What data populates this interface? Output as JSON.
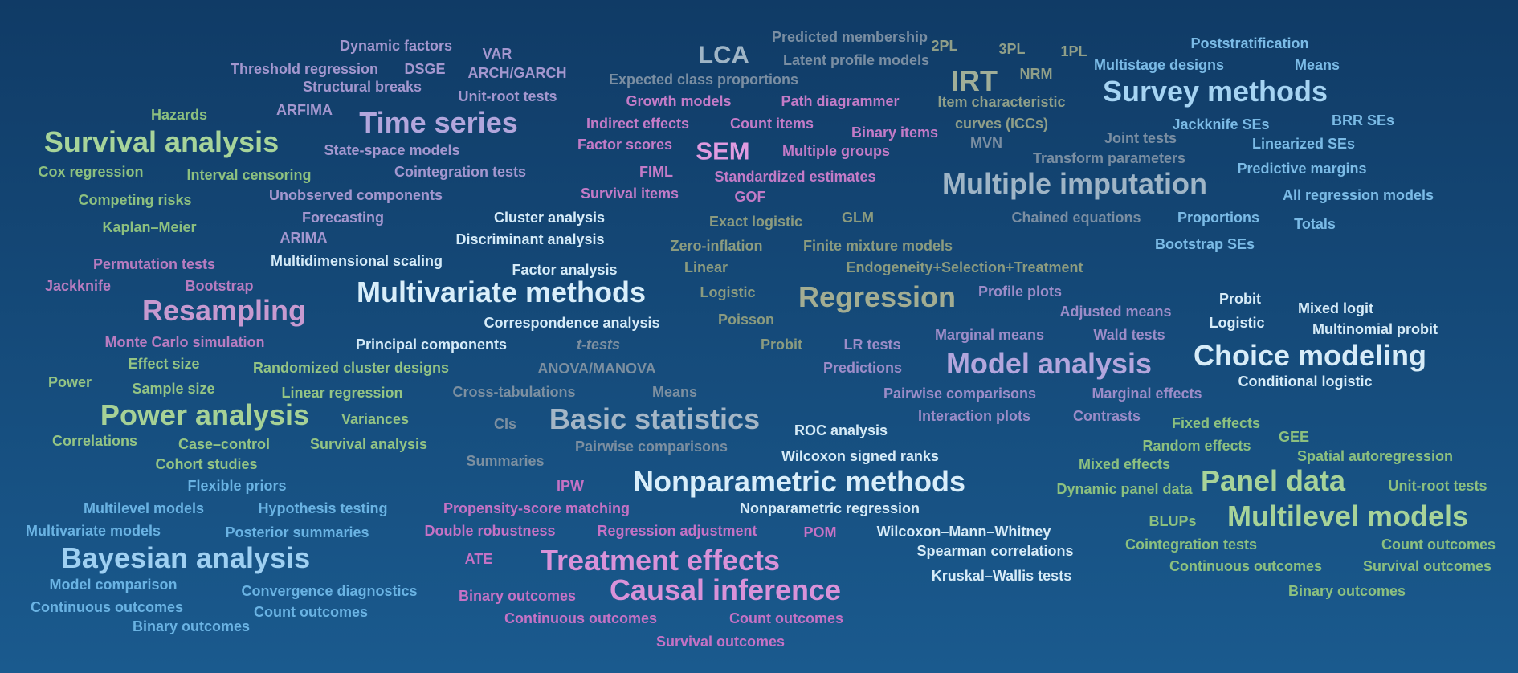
{
  "words": {
    "dynamic_factors": "Dynamic factors",
    "var": "VAR",
    "threshold_regression": "Threshold regression",
    "dsge": "DSGE",
    "arch_garch": "ARCH/GARCH",
    "structural_breaks": "Structural breaks",
    "unit_root_tests_ts": "Unit-root tests",
    "arfima": "ARFIMA",
    "time_series": "Time series",
    "state_space_models": "State-space models",
    "cointegration_tests_ts": "Cointegration tests",
    "unobserved_components": "Unobserved components",
    "forecasting": "Forecasting",
    "arima": "ARIMA",
    "lca": "LCA",
    "predicted_membership": "Predicted membership",
    "latent_profile_models": "Latent profile models",
    "expected_class_proportions": "Expected class proportions",
    "growth_models": "Growth models",
    "path_diagrammer": "Path diagrammer",
    "indirect_effects": "Indirect effects",
    "count_items": "Count items",
    "binary_items": "Binary items",
    "factor_scores": "Factor scores",
    "sem": "SEM",
    "multiple_groups": "Multiple groups",
    "fiml": "FIML",
    "standardized_estimates": "Standardized estimates",
    "survival_items": "Survival items",
    "gof": "GOF",
    "twopl": "2PL",
    "threepl": "3PL",
    "onepl": "1PL",
    "irt": "IRT",
    "nrm": "NRM",
    "item_characteristic": "Item characteristic",
    "curves_iccs": "curves (ICCs)",
    "poststratification": "Poststratification",
    "multistage_designs": "Multistage designs",
    "means_sv": "Means",
    "survey_methods": "Survey methods",
    "jackknife_ses": "Jackknife SEs",
    "brr_ses": "BRR SEs",
    "linearized_ses": "Linearized SEs",
    "predictive_margins": "Predictive margins",
    "all_regression_models": "All regression models",
    "proportions": "Proportions",
    "totals": "Totals",
    "bootstrap_ses": "Bootstrap SEs",
    "hazards": "Hazards",
    "survival_analysis": "Survival analysis",
    "cox_regression": "Cox regression",
    "interval_censoring": "Interval censoring",
    "competing_risks": "Competing risks",
    "kaplan_meier": "Kaplan–Meier",
    "joint_tests": "Joint tests",
    "mvn": "MVN",
    "transform_parameters": "Transform parameters",
    "multiple_imputation": "Multiple imputation",
    "chained_equations": "Chained equations",
    "cluster_analysis": "Cluster analysis",
    "discriminant_analysis": "Discriminant analysis",
    "multidimensional_scaling": "Multidimensional scaling",
    "factor_analysis": "Factor analysis",
    "multivariate_methods": "Multivariate methods",
    "correspondence_analysis": "Correspondence analysis",
    "principal_components": "Principal components",
    "permutation_tests": "Permutation tests",
    "jackknife": "Jackknife",
    "bootstrap": "Bootstrap",
    "resampling": "Resampling",
    "monte_carlo_simulation": "Monte Carlo simulation",
    "exact_logistic": "Exact logistic",
    "glm": "GLM",
    "zero_inflation": "Zero-inflation",
    "finite_mixture_models": "Finite mixture models",
    "linear": "Linear",
    "endogeneity": "Endogeneity+Selection+Treatment",
    "logistic_rg": "Logistic",
    "regression": "Regression",
    "poisson": "Poisson",
    "probit_rg": "Probit",
    "probit_cm": "Probit",
    "mixed_logit": "Mixed logit",
    "logistic_cm": "Logistic",
    "multinomial_probit": "Multinomial probit",
    "choice_modeling": "Choice modeling",
    "conditional_logistic": "Conditional logistic",
    "profile_plots": "Profile plots",
    "adjusted_means": "Adjusted means",
    "marginal_means": "Marginal means",
    "wald_tests": "Wald tests",
    "lr_tests": "LR tests",
    "predictions": "Predictions",
    "model_analysis": "Model analysis",
    "pairwise_comparisons_ma": "Pairwise comparisons",
    "marginal_effects": "Marginal effects",
    "interaction_plots": "Interaction plots",
    "contrasts": "Contrasts",
    "effect_size": "Effect size",
    "randomized_cluster_designs": "Randomized cluster designs",
    "power": "Power",
    "sample_size": "Sample size",
    "linear_regression": "Linear regression",
    "power_analysis": "Power analysis",
    "variances": "Variances",
    "correlations": "Correlations",
    "case_control": "Case–control",
    "survival_analysis_pw": "Survival analysis",
    "cohort_studies": "Cohort studies",
    "t_tests": "t-tests",
    "anova_manova": "ANOVA/MANOVA",
    "cross_tabulations": "Cross-tabulations",
    "means_bs": "Means",
    "cis": "CIs",
    "basic_statistics": "Basic statistics",
    "summaries": "Summaries",
    "pairwise_comparisons_bs": "Pairwise comparisons",
    "roc_analysis": "ROC analysis",
    "wilcoxon_signed_ranks": "Wilcoxon signed ranks",
    "nonparametric_methods": "Nonparametric methods",
    "nonparametric_regression": "Nonparametric regression",
    "wilcoxon_mann_whitney": "Wilcoxon–Mann–Whitney",
    "spearman_correlations": "Spearman correlations",
    "kruskal_wallis_tests": "Kruskal–Wallis tests",
    "fixed_effects": "Fixed effects",
    "gee": "GEE",
    "random_effects": "Random effects",
    "spatial_autoregression": "Spatial autoregression",
    "mixed_effects": "Mixed effects",
    "dynamic_panel_data": "Dynamic panel data",
    "panel_data": "Panel data",
    "unit_root_tests_pd": "Unit-root tests",
    "blups": "BLUPs",
    "multilevel_models_pd": "Multilevel models",
    "cointegration_tests_pd": "Cointegration tests",
    "count_outcomes_pd": "Count outcomes",
    "continuous_outcomes_pd": "Continuous outcomes",
    "survival_outcomes_pd": "Survival outcomes",
    "binary_outcomes_pd": "Binary outcomes",
    "flexible_priors": "Flexible priors",
    "multilevel_models_by": "Multilevel models",
    "hypothesis_testing": "Hypothesis testing",
    "multivariate_models": "Multivariate models",
    "posterior_summaries": "Posterior summaries",
    "bayesian_analysis": "Bayesian analysis",
    "model_comparison": "Model comparison",
    "convergence_diagnostics": "Convergence diagnostics",
    "continuous_outcomes_by": "Continuous outcomes",
    "count_outcomes_by": "Count outcomes",
    "binary_outcomes_by": "Binary outcomes",
    "ipw": "IPW",
    "propensity_score_matching": "Propensity-score matching",
    "double_robustness": "Double robustness",
    "regression_adjustment": "Regression adjustment",
    "pom": "POM",
    "ate": "ATE",
    "treatment_effects": "Treatment effects",
    "binary_outcomes_te": "Binary outcomes",
    "causal_inference": "Causal inference",
    "continuous_outcomes_te": "Continuous outcomes",
    "count_outcomes_te": "Count outcomes",
    "survival_outcomes_te": "Survival outcomes"
  }
}
